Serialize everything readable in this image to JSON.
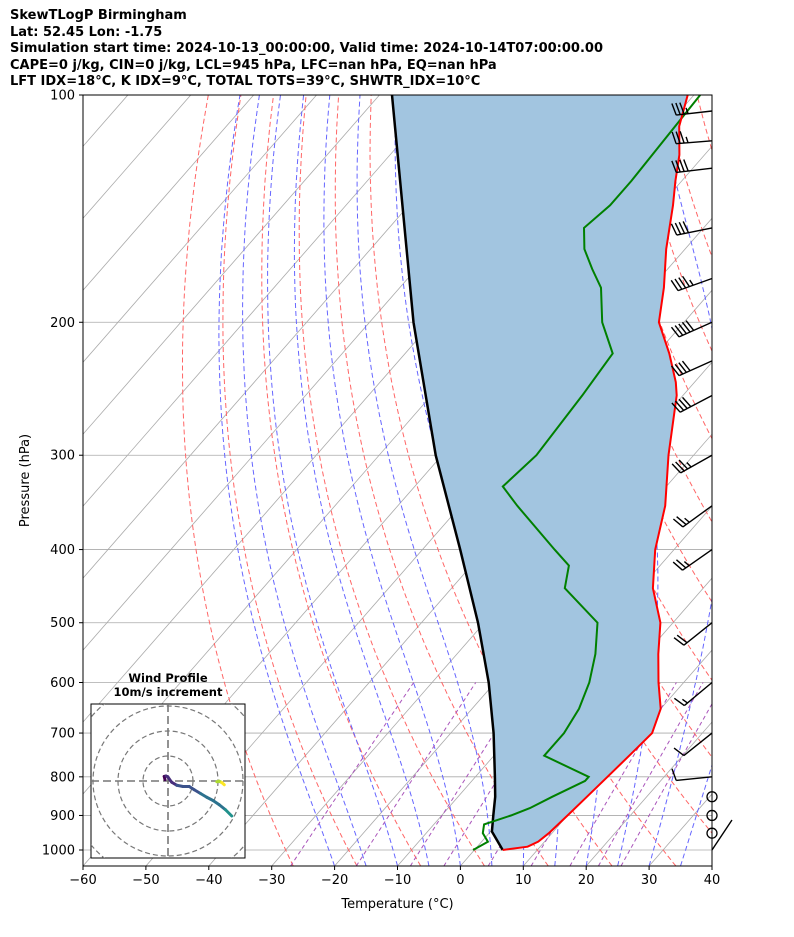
{
  "header": {
    "lines": [
      "SkewTLogP Birmingham",
      "Lat: 52.45   Lon: -1.75",
      "Simulation start time: 2024-10-13_00:00:00, Valid time: 2024-10-14T07:00:00.00",
      "CAPE=0 j/kg, CIN=0 j/kg, LCL=945 hPa, LFC=nan hPa, EQ=nan hPa",
      "LFT IDX=18$^\\circ$C, K IDX=9$^\\circ$C, TOTAL TOTS=39$^\\circ$C, SHWTR_IDX=10$^\\circ$C"
    ]
  },
  "chart_data": {
    "type": "line",
    "title": "SkewTLogP Birmingham",
    "xlabel": "Temperature ($^\\circ$C)",
    "ylabel": "Pressure (hPa)",
    "xlim": [
      -60,
      40
    ],
    "ylim": [
      1050,
      100
    ],
    "x_ticks": [
      -60,
      -50,
      -40,
      -30,
      -20,
      -10,
      0,
      10,
      20,
      30,
      40
    ],
    "x_tick_labels": [
      "−60",
      "−50",
      "−40",
      "−30",
      "−20",
      "−10",
      "0",
      "10",
      "20",
      "30",
      "40"
    ],
    "y_ticks": [
      1000,
      900,
      800,
      700,
      600,
      500,
      400,
      300,
      200,
      100
    ],
    "y_tick_labels": [
      "1000",
      "900",
      "800",
      "700",
      "600",
      "500",
      "400",
      "300",
      "200",
      "100"
    ],
    "log_y": true,
    "skew": true,
    "grid": true,
    "colors": {
      "temperature": "#ff0000",
      "dewpoint": "#008000",
      "parcel": "#000000",
      "shading": "#a2c5e0",
      "dry_adiabat": "#ff6666",
      "moist_adiabat": "#6666ff",
      "mixing_ratio": "#aa55bb",
      "isotherm": "#aaaaaa"
    },
    "series": [
      {
        "role": "temperature",
        "points": [
          [
            1000,
            4.5
          ],
          [
            990,
            8
          ],
          [
            975,
            9
          ],
          [
            950,
            9.5
          ],
          [
            900,
            10
          ],
          [
            850,
            10.5
          ],
          [
            800,
            11
          ],
          [
            750,
            11.5
          ],
          [
            700,
            12
          ],
          [
            650,
            10
          ],
          [
            600,
            6
          ],
          [
            550,
            2
          ],
          [
            500,
            -2
          ],
          [
            450,
            -8
          ],
          [
            400,
            -13
          ],
          [
            350,
            -17.5
          ],
          [
            300,
            -24
          ],
          [
            250,
            -31
          ],
          [
            240,
            -33
          ],
          [
            220,
            -38
          ],
          [
            200,
            -44
          ],
          [
            180,
            -48
          ],
          [
            160,
            -53
          ],
          [
            140,
            -58
          ],
          [
            130,
            -61
          ],
          [
            120,
            -64
          ],
          [
            110,
            -68
          ],
          [
            100,
            -71
          ]
        ]
      },
      {
        "role": "dewpoint",
        "points": [
          [
            1000,
            -0.2
          ],
          [
            975,
            1
          ],
          [
            950,
            -1
          ],
          [
            925,
            -2
          ],
          [
            900,
            1
          ],
          [
            880,
            3
          ],
          [
            850,
            5
          ],
          [
            810,
            8
          ],
          [
            800,
            8
          ],
          [
            750,
            -2
          ],
          [
            700,
            -2
          ],
          [
            650,
            -3
          ],
          [
            600,
            -5
          ],
          [
            550,
            -8
          ],
          [
            500,
            -12
          ],
          [
            450,
            -22
          ],
          [
            420,
            -24.5
          ],
          [
            400,
            -29
          ],
          [
            350,
            -41
          ],
          [
            330,
            -46
          ],
          [
            300,
            -45
          ],
          [
            250,
            -46
          ],
          [
            220,
            -47
          ],
          [
            200,
            -53
          ],
          [
            180,
            -58
          ],
          [
            170,
            -62
          ],
          [
            160,
            -66
          ],
          [
            150,
            -69
          ],
          [
            140,
            -68
          ],
          [
            130,
            -68
          ],
          [
            100,
            -69
          ]
        ]
      },
      {
        "role": "parcel",
        "points": [
          [
            1000,
            4.5
          ],
          [
            945,
            0.2
          ],
          [
            900,
            -1.8
          ],
          [
            850,
            -4.1
          ],
          [
            800,
            -6.9
          ],
          [
            700,
            -13.2
          ],
          [
            600,
            -21
          ],
          [
            500,
            -31
          ],
          [
            400,
            -44
          ],
          [
            300,
            -61
          ],
          [
            200,
            -83
          ],
          [
            100,
            -118
          ]
        ]
      }
    ],
    "wind_barbs": [
      {
        "p": 1000,
        "u": -2,
        "v": -3
      },
      {
        "p": 950,
        "u": 0,
        "v": 0
      },
      {
        "p": 900,
        "u": 0,
        "v": 0
      },
      {
        "p": 850,
        "u": 0,
        "v": 0
      },
      {
        "p": 800,
        "u": 10,
        "v": 1
      },
      {
        "p": 700,
        "u": 10,
        "v": 8
      },
      {
        "p": 600,
        "u": 12,
        "v": 10
      },
      {
        "p": 500,
        "u": 15,
        "v": 12
      },
      {
        "p": 400,
        "u": 20,
        "v": 14
      },
      {
        "p": 350,
        "u": 22,
        "v": 16
      },
      {
        "p": 300,
        "u": 32,
        "v": 18
      },
      {
        "p": 250,
        "u": 38,
        "v": 20
      },
      {
        "p": 225,
        "u": 40,
        "v": 18
      },
      {
        "p": 200,
        "u": 45,
        "v": 20
      },
      {
        "p": 175,
        "u": 42,
        "v": 15
      },
      {
        "p": 150,
        "u": 40,
        "v": 8
      },
      {
        "p": 125,
        "u": 42,
        "v": 5
      },
      {
        "p": 115,
        "u": 38,
        "v": 3
      },
      {
        "p": 105,
        "u": 35,
        "v": 4
      }
    ],
    "inset": {
      "title": "Wind Profile\n10m/s increment",
      "rings": [
        10,
        20,
        30,
        40
      ],
      "hodograph_points": [
        [
          -1.2,
          0.5
        ],
        [
          -1.5,
          1.8
        ],
        [
          -0.8,
          2.0
        ],
        [
          -0.1,
          1.7
        ],
        [
          0.5,
          0.8
        ],
        [
          1.5,
          -0.5
        ],
        [
          3.5,
          -1.7
        ],
        [
          6.0,
          -2.2
        ],
        [
          8.5,
          -2.2
        ],
        [
          10.5,
          -3.5
        ],
        [
          13.0,
          -5.0
        ],
        [
          15.5,
          -6.5
        ],
        [
          18.0,
          -7.8
        ],
        [
          20.5,
          -9.5
        ],
        [
          23.0,
          -11.5
        ],
        [
          25.5,
          -14.0
        ]
      ],
      "hodograph_points_2": [
        [
          19.5,
          -0.3
        ],
        [
          20.5,
          -0.1
        ],
        [
          21.5,
          -0.6
        ],
        [
          22.5,
          -1.5
        ]
      ]
    }
  }
}
